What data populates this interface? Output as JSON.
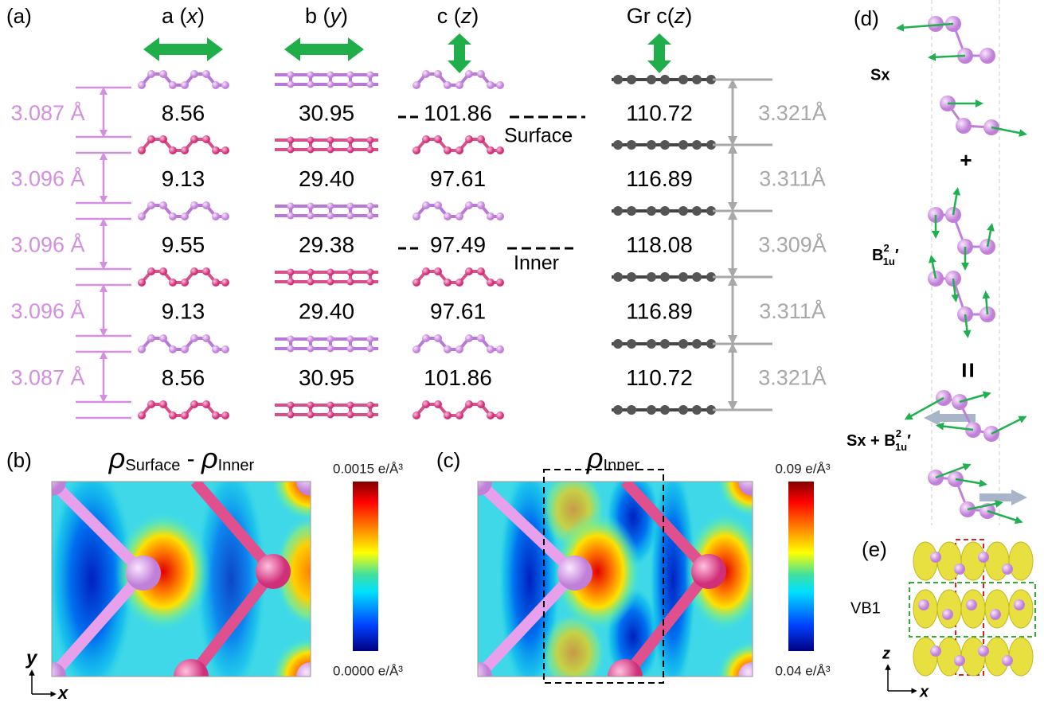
{
  "panel_labels": [
    "(a)",
    "(b)",
    "(c)",
    "(d)",
    "(e)"
  ],
  "panel_a": {
    "columns": [
      [
        "a (",
        "x",
        ")"
      ],
      [
        "b (",
        "y",
        ")"
      ],
      [
        "c (",
        "z",
        ")"
      ],
      [
        "Gr c(",
        "z",
        ")"
      ]
    ],
    "left_spacings": [
      "3.087 Å",
      "3.096 Å",
      "3.096 Å",
      "3.096 Å",
      "3.087 Å"
    ],
    "rows": [
      [
        "8.56",
        "30.95",
        "101.86",
        "110.72"
      ],
      [
        "9.13",
        "29.40",
        "97.61",
        "116.89"
      ],
      [
        "9.55",
        "29.38",
        "97.49",
        "118.08"
      ],
      [
        "9.13",
        "29.40",
        "97.61",
        "116.89"
      ],
      [
        "8.56",
        "30.95",
        "101.86",
        "110.72"
      ]
    ],
    "right_spacings": [
      "3.321Å",
      "3.311Å",
      "3.309Å",
      "3.311Å",
      "3.321Å"
    ],
    "annotations": [
      "Surface",
      "Inner"
    ]
  },
  "panel_b": {
    "title": [
      "ρ",
      "Surface",
      " - ",
      "ρ",
      "Inner"
    ],
    "colorbar": [
      "0.0015 e/Å³",
      "0.0000 e/Å³"
    ],
    "axes": [
      "y",
      "x"
    ]
  },
  "panel_c": {
    "title": [
      "ρ",
      "Inner"
    ],
    "colorbar": [
      "0.09 e/Å³",
      "0.04 e/Å³"
    ]
  },
  "panel_d": {
    "sx": "Sx",
    "plus": "+",
    "mode": {
      "base": "B",
      "sup": "2",
      "sub": "1u",
      "prime": "′"
    },
    "equals": "=",
    "combo": "Sx + "
  },
  "panel_e": {
    "label": "VB1",
    "axes": [
      "z",
      "x"
    ]
  }
}
